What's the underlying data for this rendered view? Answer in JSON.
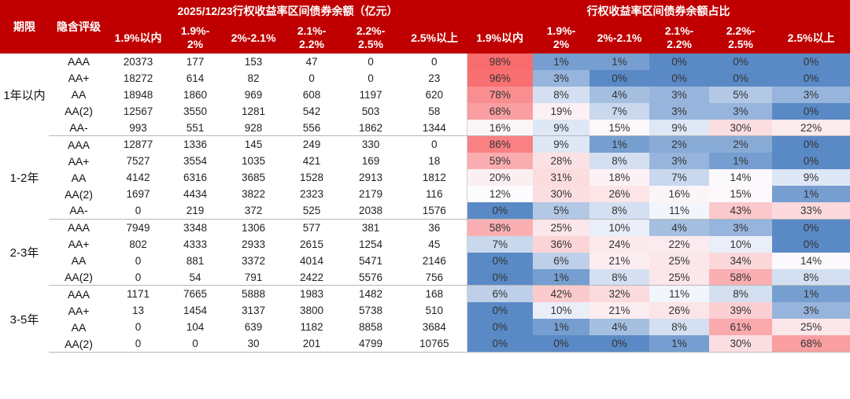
{
  "headers": {
    "term": "期限",
    "rating": "隐含评级",
    "balance_group": "2025/12/23行权收益率区间债券余额（亿元）",
    "share_group": "行权收益率区间债券余额占比",
    "buckets": [
      "1.9%以内",
      "1.9%-\n2%",
      "2%-2.1%",
      "2.1%-\n2.2%",
      "2.2%-\n2.5%",
      "2.5%以上"
    ]
  },
  "colors": {
    "header_bg": "#c00000",
    "high": "#f8696b",
    "mid": "#fcfcff",
    "low": "#5a8ac6"
  },
  "groups": [
    {
      "term": "1年以内",
      "rows": [
        {
          "rating": "AAA",
          "balances": [
            "20373",
            "177",
            "153",
            "47",
            "0",
            "0"
          ],
          "shares": [
            "98%",
            "1%",
            "1%",
            "0%",
            "0%",
            "0%"
          ]
        },
        {
          "rating": "AA+",
          "balances": [
            "18272",
            "614",
            "82",
            "0",
            "0",
            "23"
          ],
          "shares": [
            "96%",
            "3%",
            "0%",
            "0%",
            "0%",
            "0%"
          ]
        },
        {
          "rating": "AA",
          "balances": [
            "18948",
            "1860",
            "969",
            "608",
            "1197",
            "620"
          ],
          "shares": [
            "78%",
            "8%",
            "4%",
            "3%",
            "5%",
            "3%"
          ]
        },
        {
          "rating": "AA(2)",
          "balances": [
            "12567",
            "3550",
            "1281",
            "542",
            "503",
            "58"
          ],
          "shares": [
            "68%",
            "19%",
            "7%",
            "3%",
            "3%",
            "0%"
          ]
        },
        {
          "rating": "AA-",
          "balances": [
            "993",
            "551",
            "928",
            "556",
            "1862",
            "1344"
          ],
          "shares": [
            "16%",
            "9%",
            "15%",
            "9%",
            "30%",
            "22%"
          ]
        }
      ]
    },
    {
      "term": "1-2年",
      "rows": [
        {
          "rating": "AAA",
          "balances": [
            "12877",
            "1336",
            "145",
            "249",
            "330",
            "0"
          ],
          "shares": [
            "86%",
            "9%",
            "1%",
            "2%",
            "2%",
            "0%"
          ]
        },
        {
          "rating": "AA+",
          "balances": [
            "7527",
            "3554",
            "1035",
            "421",
            "169",
            "18"
          ],
          "shares": [
            "59%",
            "28%",
            "8%",
            "3%",
            "1%",
            "0%"
          ]
        },
        {
          "rating": "AA",
          "balances": [
            "4142",
            "6316",
            "3685",
            "1528",
            "2913",
            "1812"
          ],
          "shares": [
            "20%",
            "31%",
            "18%",
            "7%",
            "14%",
            "9%"
          ]
        },
        {
          "rating": "AA(2)",
          "balances": [
            "1697",
            "4434",
            "3822",
            "2323",
            "2179",
            "116"
          ],
          "shares": [
            "12%",
            "30%",
            "26%",
            "16%",
            "15%",
            "1%"
          ]
        },
        {
          "rating": "AA-",
          "balances": [
            "0",
            "219",
            "372",
            "525",
            "2038",
            "1576"
          ],
          "shares": [
            "0%",
            "5%",
            "8%",
            "11%",
            "43%",
            "33%"
          ]
        }
      ]
    },
    {
      "term": "2-3年",
      "rows": [
        {
          "rating": "AAA",
          "balances": [
            "7949",
            "3348",
            "1306",
            "577",
            "381",
            "36"
          ],
          "shares": [
            "58%",
            "25%",
            "10%",
            "4%",
            "3%",
            "0%"
          ]
        },
        {
          "rating": "AA+",
          "balances": [
            "802",
            "4333",
            "2933",
            "2615",
            "1254",
            "45"
          ],
          "shares": [
            "7%",
            "36%",
            "24%",
            "22%",
            "10%",
            "0%"
          ]
        },
        {
          "rating": "AA",
          "balances": [
            "0",
            "881",
            "3372",
            "4014",
            "5471",
            "2146"
          ],
          "shares": [
            "0%",
            "6%",
            "21%",
            "25%",
            "34%",
            "14%"
          ]
        },
        {
          "rating": "AA(2)",
          "balances": [
            "0",
            "54",
            "791",
            "2422",
            "5576",
            "756"
          ],
          "shares": [
            "0%",
            "1%",
            "8%",
            "25%",
            "58%",
            "8%"
          ]
        }
      ]
    },
    {
      "term": "3-5年",
      "rows": [
        {
          "rating": "AAA",
          "balances": [
            "1171",
            "7665",
            "5888",
            "1983",
            "1482",
            "168"
          ],
          "shares": [
            "6%",
            "42%",
            "32%",
            "11%",
            "8%",
            "1%"
          ]
        },
        {
          "rating": "AA+",
          "balances": [
            "13",
            "1454",
            "3137",
            "3800",
            "5738",
            "510"
          ],
          "shares": [
            "0%",
            "10%",
            "21%",
            "26%",
            "39%",
            "3%"
          ]
        },
        {
          "rating": "AA",
          "balances": [
            "0",
            "104",
            "639",
            "1182",
            "8858",
            "3684"
          ],
          "shares": [
            "0%",
            "1%",
            "4%",
            "8%",
            "61%",
            "25%"
          ]
        },
        {
          "rating": "AA(2)",
          "balances": [
            "0",
            "0",
            "30",
            "201",
            "4799",
            "10765"
          ],
          "shares": [
            "0%",
            "0%",
            "0%",
            "1%",
            "30%",
            "68%"
          ]
        }
      ]
    }
  ]
}
